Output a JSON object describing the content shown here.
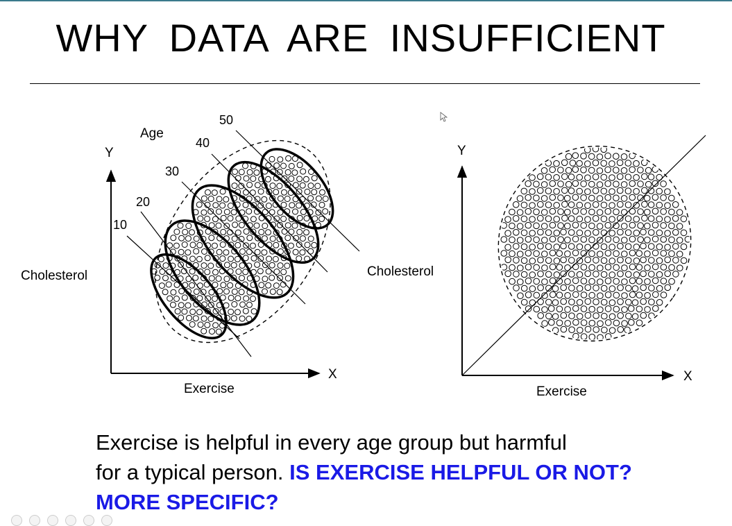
{
  "slide": {
    "title": "WHY DATA ARE INSUFFICIENT"
  },
  "left_figure": {
    "y_axis_label": "Y",
    "x_axis_label": "X",
    "y_variable": "Cholesterol",
    "x_variable": "Exercise",
    "group_title": "Age",
    "age_groups": [
      "10",
      "20",
      "30",
      "40",
      "50"
    ]
  },
  "right_figure": {
    "y_axis_label": "Y",
    "x_axis_label": "X",
    "y_variable": "Cholesterol",
    "x_variable": "Exercise"
  },
  "caption": {
    "line1": "Exercise is helpful in every age group but harmful",
    "line2": "for a typical person.",
    "question1": "IS EXERCISE HELPFUL OR NOT?",
    "question2": "MORE SPECIFIC?",
    "emphasis_color": "#1a1ae6"
  }
}
